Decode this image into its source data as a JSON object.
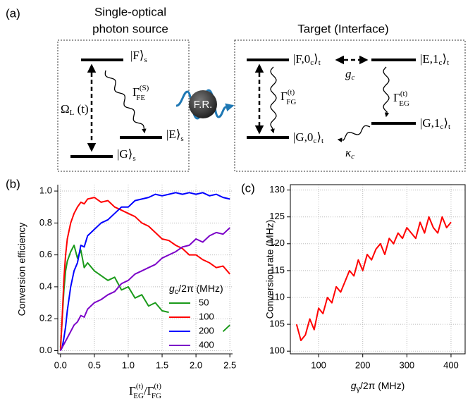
{
  "panel_labels": [
    "(a)",
    "(b)",
    "(c)"
  ],
  "diagram": {
    "source_title": [
      "Single-optical",
      "photon source"
    ],
    "target_title": "Target (Interface)",
    "source_states": [
      {
        "ket": "|F⟩",
        "sub": "s"
      },
      {
        "ket": "|E⟩",
        "sub": "s"
      },
      {
        "ket": "|G⟩",
        "sub": "s"
      }
    ],
    "omega": {
      "main": "Ω",
      "sub": "L",
      "arg": " (t)"
    },
    "gamma_fe": {
      "main": "Γ",
      "sup": "(S)",
      "sub": "FE"
    },
    "photon": "F.R.",
    "target_states": [
      {
        "a": "|F,0",
        "b": "c",
        "c": "⟩",
        "d": "t"
      },
      {
        "a": "|E,1",
        "b": "c",
        "c": "⟩",
        "d": "t"
      },
      {
        "a": "|G,0",
        "b": "c",
        "c": "⟩",
        "d": "t"
      },
      {
        "a": "|G,1",
        "b": "c",
        "c": "⟩",
        "d": "t"
      }
    ],
    "coupling": {
      "main": "g",
      "sub": "c"
    },
    "gamma_fg": {
      "main": "Γ",
      "sup": "(t)",
      "sub": "FG"
    },
    "gamma_eg": {
      "main": "Γ",
      "sup": "(t)",
      "sub": "EG"
    },
    "kappa": {
      "main": "κ",
      "sub": "c"
    }
  },
  "chart_data": [
    {
      "type": "line",
      "y_label": "Conversion efficiency",
      "x_label": {
        "g1": "Γ",
        "sup1": "(t)",
        "sub1": "EG",
        "g2": "/Γ",
        "sup2": "(t)",
        "sub2": "FG"
      },
      "legend_title": {
        "main": "g",
        "sub": "c",
        "rest": "/2π (MHz)"
      },
      "legend": "lower right",
      "grid": true,
      "xlim": [
        -0.04,
        2.54
      ],
      "ylim": [
        -0.02,
        1.04
      ],
      "xticks": [
        {
          "value": 0,
          "label": "0.0"
        },
        {
          "value": 0.5,
          "label": "0.5"
        },
        {
          "value": 1,
          "label": "1.0"
        },
        {
          "value": 1.5,
          "label": "1.5"
        },
        {
          "value": 2,
          "label": "2.0"
        },
        {
          "value": 2.5,
          "label": "2.5"
        }
      ],
      "yticks": [
        {
          "value": 0,
          "label": "0.0"
        },
        {
          "value": 0.2,
          "label": "0.2"
        },
        {
          "value": 0.4,
          "label": "0.4"
        },
        {
          "value": 0.6,
          "label": "0.6"
        },
        {
          "value": 0.8,
          "label": "0.8"
        },
        {
          "value": 1,
          "label": "1.0"
        }
      ],
      "x": [
        0,
        0.025,
        0.05,
        0.075,
        0.1,
        0.15,
        0.2,
        0.25,
        0.3,
        0.35,
        0.4,
        0.5,
        0.6,
        0.7,
        0.8,
        0.9,
        1.0,
        1.1,
        1.2,
        1.3,
        1.4,
        1.5,
        1.6,
        1.7,
        1.8,
        1.9,
        2.0,
        2.1,
        2.2,
        2.3,
        2.4,
        2.5
      ],
      "series": [
        {
          "name": "50",
          "color": "#1a9a1a",
          "values": [
            0.02,
            0.2,
            0.38,
            0.5,
            0.56,
            0.62,
            0.66,
            0.58,
            0.63,
            0.52,
            0.55,
            0.5,
            0.47,
            0.44,
            0.46,
            0.38,
            0.4,
            0.33,
            0.35,
            0.28,
            0.3,
            0.25,
            0.24,
            null,
            null,
            null,
            null,
            null,
            null,
            null,
            0.12,
            0.16
          ]
        },
        {
          "name": "100",
          "color": "#ff0000",
          "values": [
            0.0,
            0.2,
            0.45,
            0.6,
            0.7,
            0.8,
            0.86,
            0.9,
            0.93,
            0.92,
            0.95,
            0.96,
            0.93,
            0.94,
            0.9,
            0.88,
            0.86,
            0.84,
            0.8,
            0.78,
            0.74,
            0.7,
            0.69,
            0.66,
            0.64,
            0.6,
            0.6,
            0.57,
            0.55,
            0.52,
            0.53,
            0.48
          ]
        },
        {
          "name": "200",
          "color": "#0000ff",
          "values": [
            0.0,
            0.02,
            0.08,
            0.15,
            0.25,
            0.4,
            0.5,
            0.55,
            0.66,
            0.65,
            0.72,
            0.76,
            0.8,
            0.82,
            0.86,
            0.9,
            0.9,
            0.94,
            0.95,
            0.96,
            0.98,
            0.97,
            0.98,
            0.99,
            0.98,
            0.99,
            0.98,
            0.99,
            0.97,
            0.98,
            0.96,
            0.95
          ]
        },
        {
          "name": "400",
          "color": "#7b00c8",
          "values": [
            0.0,
            0.02,
            0.04,
            0.06,
            0.08,
            0.12,
            0.16,
            0.18,
            0.22,
            0.21,
            0.26,
            0.3,
            0.32,
            0.35,
            0.37,
            0.42,
            0.44,
            0.48,
            0.5,
            0.52,
            0.54,
            0.58,
            0.6,
            0.62,
            0.65,
            0.66,
            0.7,
            0.68,
            0.72,
            0.74,
            0.73,
            0.77
          ]
        }
      ]
    },
    {
      "type": "line",
      "y_label": "Conversion rate (MHz)",
      "x_label": {
        "main": "g",
        "sub": "γ",
        "rest": "/2π (MHz)"
      },
      "grid": true,
      "xlim": [
        36,
        432
      ],
      "ylim": [
        99.5,
        131
      ],
      "xticks": [
        100,
        200,
        300,
        400
      ],
      "yticks": [
        100,
        105,
        110,
        115,
        120,
        125,
        130
      ],
      "x": [
        50,
        60,
        70,
        80,
        90,
        100,
        110,
        120,
        130,
        140,
        150,
        160,
        170,
        180,
        190,
        200,
        210,
        220,
        230,
        240,
        250,
        260,
        270,
        280,
        290,
        300,
        310,
        320,
        330,
        340,
        350,
        360,
        370,
        380,
        390,
        400
      ],
      "series": [
        {
          "color": "#ff0000",
          "values": [
            105,
            102,
            103,
            106,
            104,
            108,
            107,
            110,
            109,
            112,
            111,
            113,
            115,
            114,
            117,
            115,
            118,
            117,
            119,
            120,
            118,
            121,
            120,
            122,
            121,
            123,
            122,
            121,
            124,
            122,
            125,
            123,
            122,
            125,
            123,
            124
          ]
        }
      ]
    }
  ]
}
